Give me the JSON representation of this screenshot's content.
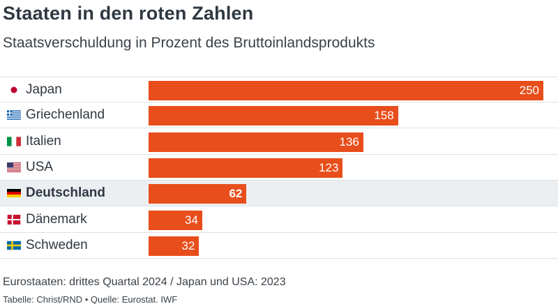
{
  "title": "Staaten in den roten Zahlen",
  "subtitle": "Staatsverschuldung in Prozent des Bruttoinlandsprodukts",
  "note": "Eurostaaten: drittes Quartal 2024 / Japan und USA: 2023",
  "source": "Tabelle: Christ/RND • Quelle: Eurostat. IWF",
  "colors": {
    "bar": "#e84e1b",
    "highlight_row": "#eceff2",
    "bar_label": "#ffffff"
  },
  "chart_data": {
    "type": "bar",
    "orientation": "horizontal",
    "categories": [
      "Japan",
      "Griechenland",
      "Italien",
      "USA",
      "Deutschland",
      "Dänemark",
      "Schweden"
    ],
    "values": [
      250,
      158,
      136,
      123,
      62,
      34,
      32
    ],
    "highlight": "Deutschland",
    "flags": [
      "japan-flag-icon",
      "greece-flag-icon",
      "italy-flag-icon",
      "usa-flag-icon",
      "germany-flag-icon",
      "denmark-flag-icon",
      "sweden-flag-icon"
    ],
    "xlim": [
      0,
      250
    ]
  }
}
